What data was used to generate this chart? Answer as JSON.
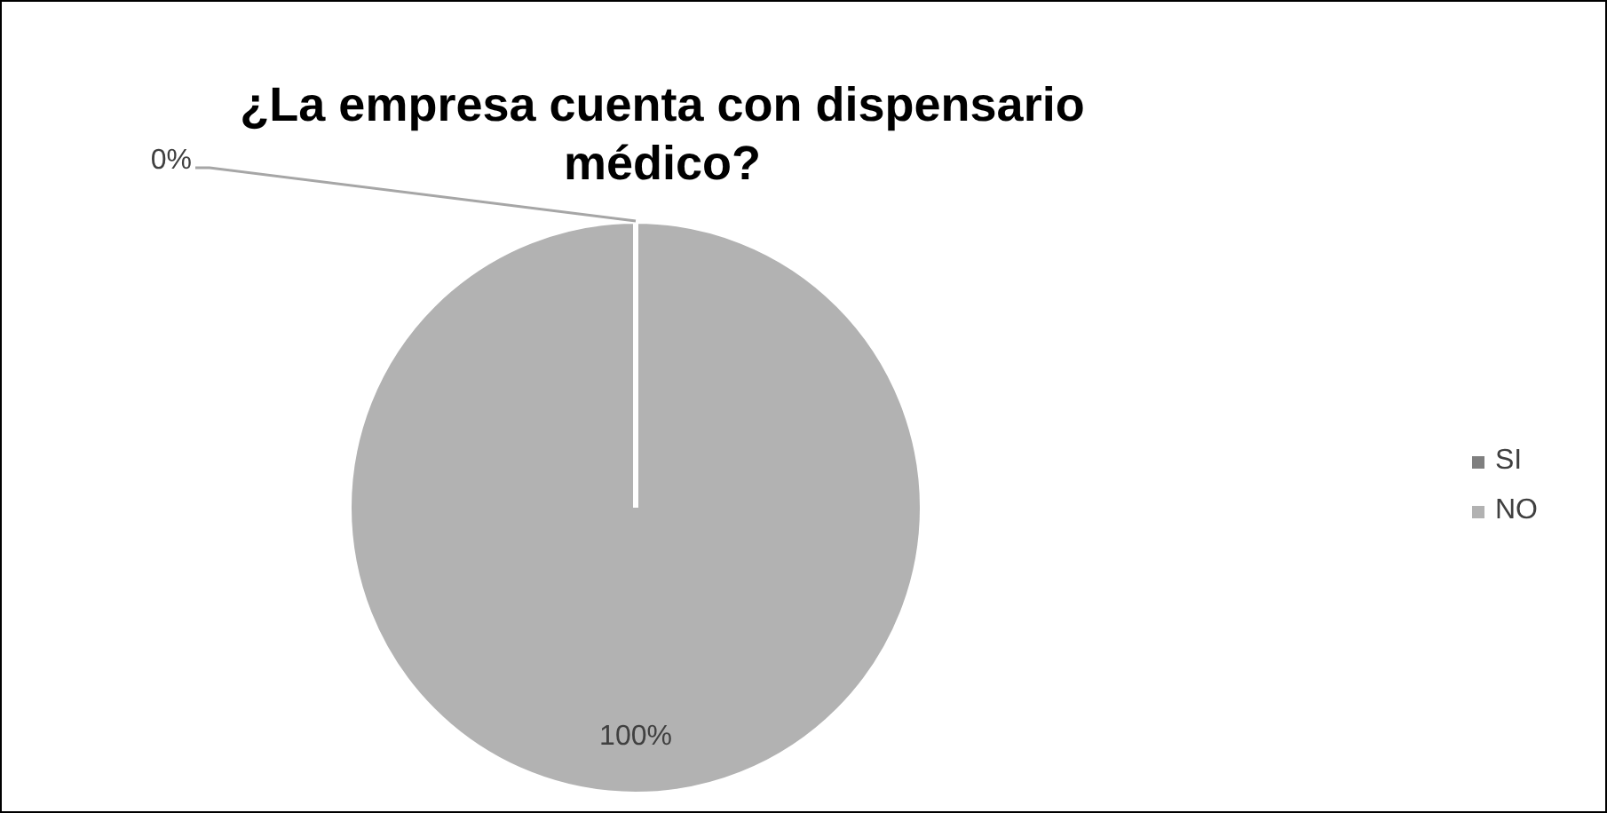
{
  "chart_data": {
    "type": "pie",
    "title": "¿La empresa cuenta con dispensario médico?",
    "categories": [
      "SI",
      "NO"
    ],
    "values": [
      0,
      100
    ],
    "colors": [
      "#7f7f7f",
      "#b2b2b2"
    ],
    "value_labels": [
      "0%",
      "100%"
    ],
    "legend": "right"
  }
}
